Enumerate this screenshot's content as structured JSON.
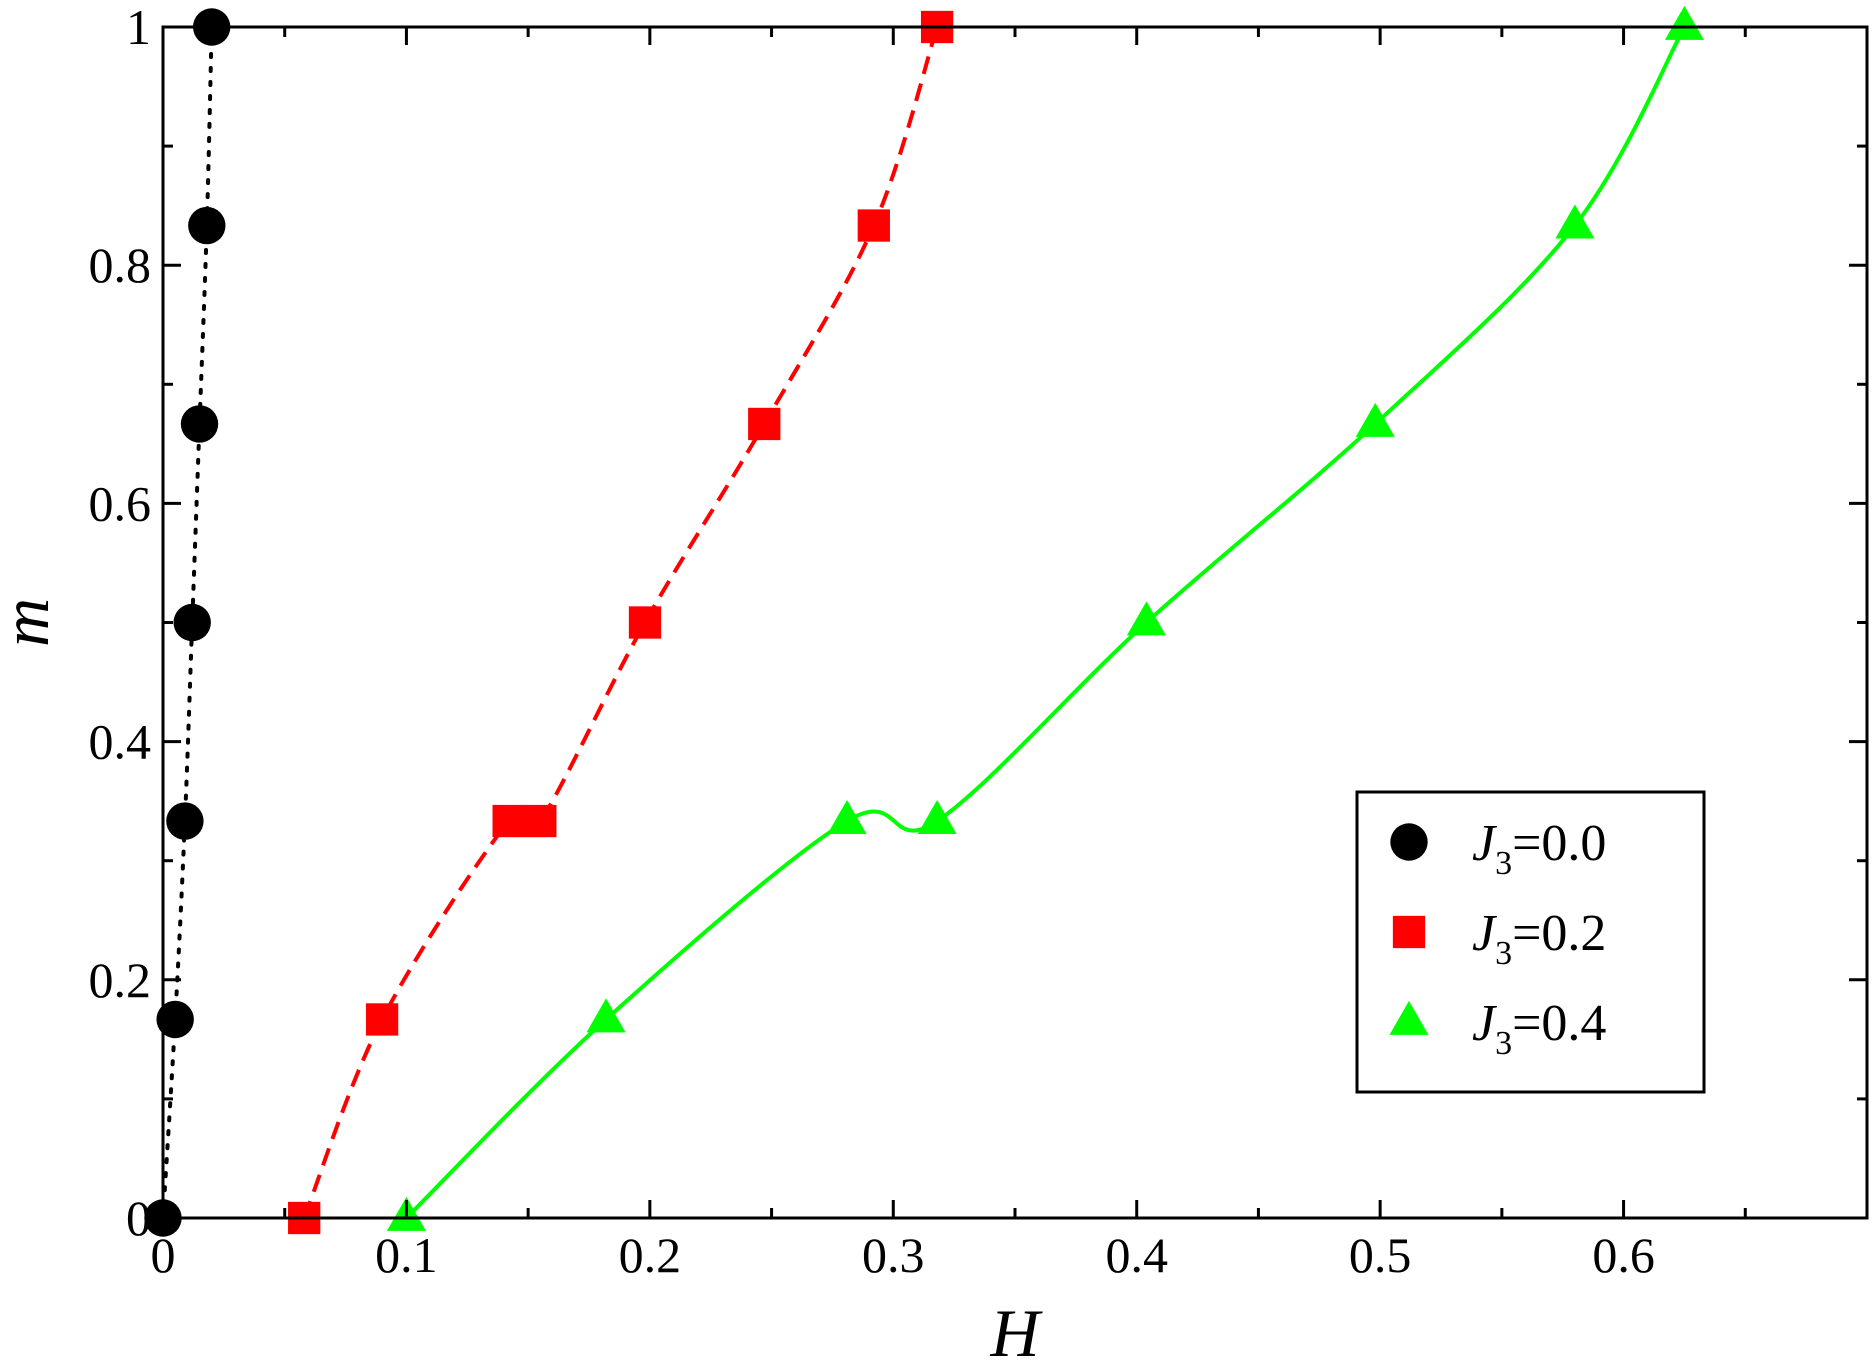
{
  "chart_data": {
    "type": "line",
    "xlabel": "H",
    "ylabel": "m",
    "xlim": [
      0,
      0.7
    ],
    "ylim": [
      0,
      1
    ],
    "x_ticks": [
      0,
      0.1,
      0.2,
      0.3,
      0.4,
      0.5,
      0.6
    ],
    "x_tick_labels": [
      "0",
      "0.1",
      "0.2",
      "0.3",
      "0.4",
      "0.5",
      "0.6"
    ],
    "y_ticks": [
      0,
      0.2,
      0.4,
      0.6,
      0.8,
      1
    ],
    "y_tick_labels": [
      "0",
      "0.2",
      "0.4",
      "0.6",
      "0.8",
      "1"
    ],
    "grid": false,
    "legend_position": "bottom-right",
    "series": [
      {
        "name": "J3=0.0",
        "legend_main": "J",
        "legend_sub": "3",
        "legend_value": "=0.0",
        "color": "#000000",
        "marker": "circle",
        "line_style": "dotted",
        "points": [
          {
            "x": 0.0,
            "y": 0.0
          },
          {
            "x": 0.005,
            "y": 0.1667
          },
          {
            "x": 0.009,
            "y": 0.3333
          },
          {
            "x": 0.012,
            "y": 0.5
          },
          {
            "x": 0.015,
            "y": 0.6667
          },
          {
            "x": 0.018,
            "y": 0.8333
          },
          {
            "x": 0.02,
            "y": 1.0
          }
        ]
      },
      {
        "name": "J3=0.2",
        "legend_main": "J",
        "legend_sub": "3",
        "legend_value": "=0.2",
        "color": "#ff0000",
        "marker": "square",
        "line_style": "dashed",
        "points": [
          {
            "x": 0.058,
            "y": 0.0
          },
          {
            "x": 0.09,
            "y": 0.1667
          },
          {
            "x": 0.142,
            "y": 0.3333
          },
          {
            "x": 0.155,
            "y": 0.3333
          },
          {
            "x": 0.198,
            "y": 0.5
          },
          {
            "x": 0.247,
            "y": 0.6667
          },
          {
            "x": 0.292,
            "y": 0.8333
          },
          {
            "x": 0.318,
            "y": 1.0
          }
        ]
      },
      {
        "name": "J3=0.4",
        "legend_main": "J",
        "legend_sub": "3",
        "legend_value": "=0.4",
        "color": "#00ff00",
        "marker": "triangle",
        "line_style": "solid",
        "points": [
          {
            "x": 0.1,
            "y": 0.0
          },
          {
            "x": 0.182,
            "y": 0.1667
          },
          {
            "x": 0.281,
            "y": 0.3333
          },
          {
            "x": 0.318,
            "y": 0.3333
          },
          {
            "x": 0.404,
            "y": 0.5
          },
          {
            "x": 0.498,
            "y": 0.6667
          },
          {
            "x": 0.58,
            "y": 0.8333
          },
          {
            "x": 0.625,
            "y": 1.0
          }
        ]
      }
    ]
  }
}
